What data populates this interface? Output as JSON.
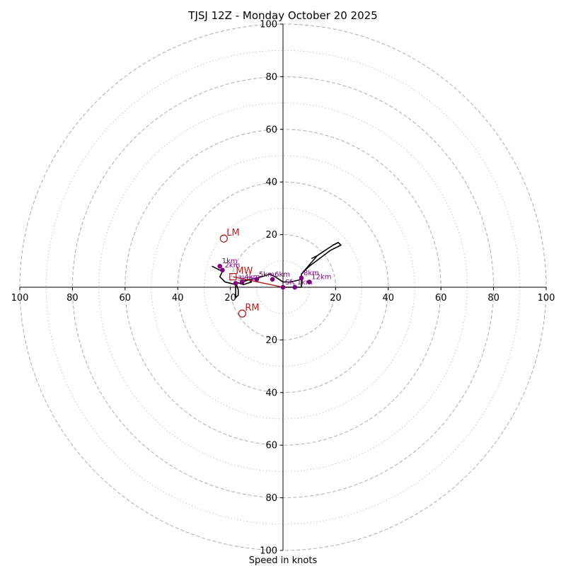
{
  "chart_data": {
    "type": "hodograph",
    "title": "TJSJ 12Z - Monday October 20 2025",
    "xlabel": "Speed in knots",
    "range": [
      -100,
      100
    ],
    "ring_tick_labels": [
      "100",
      "80",
      "60",
      "40",
      "20",
      "20",
      "40",
      "60",
      "80",
      "100"
    ],
    "ring_tick_values": [
      -100,
      -80,
      -60,
      -40,
      -20,
      20,
      40,
      60,
      80,
      100
    ],
    "y_tick_labels": [
      "100",
      "80",
      "60",
      "40",
      "20",
      "20",
      "40",
      "60",
      "80",
      "100"
    ],
    "y_tick_values": [
      100,
      80,
      60,
      40,
      20,
      -20,
      -40,
      -60,
      -80,
      -100
    ],
    "major_rings": [
      20,
      40,
      60,
      80,
      100
    ],
    "minor_rings": [
      10,
      30,
      50,
      70,
      90
    ],
    "trace": {
      "color": "#000000",
      "points": [
        [
          0,
          0
        ],
        [
          7,
          0
        ],
        [
          7,
          5
        ],
        [
          10,
          8
        ],
        [
          14,
          11
        ],
        [
          18,
          14
        ],
        [
          22,
          16
        ],
        [
          21,
          17
        ],
        [
          19,
          16
        ],
        [
          16,
          14
        ],
        [
          13,
          12
        ],
        [
          11,
          11
        ],
        [
          13,
          12
        ],
        [
          7,
          5
        ],
        [
          7,
          3
        ],
        [
          3,
          2
        ],
        [
          0,
          2
        ],
        [
          -3,
          4
        ],
        [
          -5,
          5
        ],
        [
          -8,
          4
        ],
        [
          -12,
          3
        ],
        [
          -16,
          2
        ],
        [
          -13,
          3
        ],
        [
          -12,
          2
        ],
        [
          -15,
          1
        ],
        [
          -18,
          2
        ],
        [
          -17,
          -1
        ],
        [
          -17,
          -3
        ],
        [
          -18,
          -4
        ],
        [
          -18,
          1
        ],
        [
          -22,
          2
        ],
        [
          -24,
          4
        ],
        [
          -23,
          6
        ],
        [
          -25,
          7
        ],
        [
          -27,
          8
        ]
      ]
    },
    "height_markers": {
      "color": "#800080",
      "points": [
        {
          "label": "Sfc",
          "u": 0,
          "v": 0
        },
        {
          "label": "1km",
          "u": 4.5,
          "v": 0
        },
        {
          "label": "1km",
          "u": -24,
          "v": 8
        },
        {
          "label": "2km",
          "u": -23,
          "v": 6.5
        },
        {
          "label": "3km",
          "u": -18,
          "v": 1.5
        },
        {
          "label": "4km",
          "u": -15.5,
          "v": 2
        },
        {
          "label": "5km",
          "u": -10,
          "v": 3
        },
        {
          "label": "6km",
          "u": -4,
          "v": 3
        },
        {
          "label": "8km",
          "u": 7,
          "v": 3.5
        },
        {
          "label": "12km",
          "u": 10,
          "v": 2
        }
      ]
    },
    "storm_motion": {
      "color": "#b22222",
      "markers": [
        {
          "label": "LM",
          "u": -22.5,
          "v": 18.5,
          "shape": "circle"
        },
        {
          "label": "RM",
          "u": -15.5,
          "v": -10,
          "shape": "circle"
        },
        {
          "label": "MW",
          "u": -19,
          "v": 4,
          "shape": "square"
        }
      ],
      "shear_vector": {
        "from": [
          -19,
          4
        ],
        "to": [
          0,
          0
        ]
      }
    },
    "grid": true
  }
}
